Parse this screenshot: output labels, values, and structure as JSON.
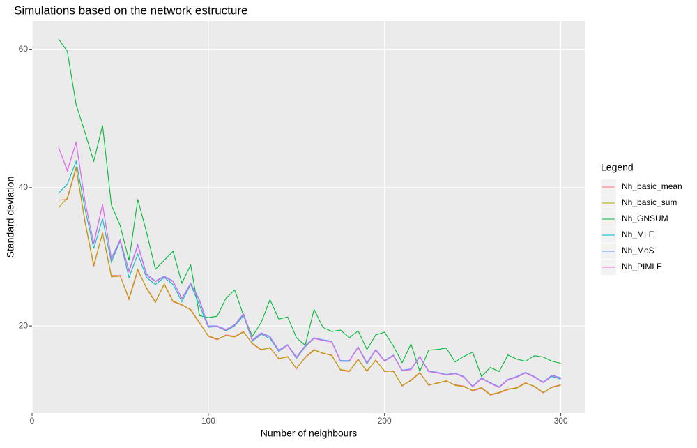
{
  "chart_data": {
    "type": "line",
    "title": "Simulations based on the network estructure",
    "x_label": "Number of neighbours",
    "y_label": "Standard deviation",
    "legend_title": "Legend",
    "legend_position": "right",
    "grid": true,
    "xlim": [
      0,
      314
    ],
    "ylim": [
      7.4,
      64.1
    ],
    "xticks": [
      0,
      100,
      200,
      300
    ],
    "yticks": [
      20,
      40,
      60
    ],
    "x": [
      15,
      20,
      25,
      30,
      35,
      40,
      45,
      50,
      55,
      60,
      65,
      70,
      75,
      80,
      85,
      90,
      95,
      100,
      105,
      110,
      115,
      120,
      125,
      130,
      135,
      140,
      145,
      150,
      155,
      160,
      165,
      170,
      175,
      180,
      185,
      190,
      195,
      200,
      205,
      210,
      215,
      220,
      225,
      230,
      235,
      240,
      245,
      250,
      255,
      260,
      265,
      270,
      275,
      280,
      285,
      290,
      295,
      300
    ],
    "series": [
      {
        "name": "Nh_basic_mean",
        "color": "#F8766D",
        "values": [
          38.2,
          38.3,
          42.8,
          35,
          28.6,
          33.5,
          27.3,
          27.3,
          23.8,
          28,
          25.5,
          23.5,
          26,
          23.5,
          23,
          22.4,
          20.5,
          18.5,
          18,
          18.7,
          18.5,
          19.2,
          17.4,
          16.5,
          16.9,
          15.2,
          15.6,
          13.8,
          15.5,
          16.6,
          16,
          15.8,
          13.6,
          13.4,
          15.2,
          13.4,
          15.1,
          13.4,
          13.5,
          11.3,
          12.2,
          13.3,
          11.4,
          11.8,
          12,
          11.5,
          11.3,
          10.6,
          11,
          10,
          10.3,
          10.8,
          11.1,
          11.8,
          11.2,
          10.3,
          11.2,
          11.5
        ]
      },
      {
        "name": "Nh_basic_sum",
        "color": "#B79F00",
        "values": [
          37.1,
          38.5,
          43,
          35.2,
          28.8,
          33.4,
          27.1,
          27.2,
          24,
          28.2,
          25.4,
          23.4,
          26.1,
          23.6,
          23.1,
          22.3,
          20.4,
          18.6,
          18.1,
          18.6,
          18.4,
          19.1,
          17.5,
          16.6,
          16.8,
          15.3,
          15.5,
          13.9,
          15.4,
          16.5,
          16.1,
          15.7,
          13.7,
          13.5,
          15.1,
          13.5,
          15,
          13.5,
          13.4,
          11.4,
          12.1,
          13.2,
          11.5,
          11.7,
          12.1,
          11.4,
          11.2,
          10.7,
          11.1,
          10.1,
          10.4,
          10.9,
          11,
          11.7,
          11.3,
          10.4,
          11.1,
          11.4
        ]
      },
      {
        "name": "Nh_GNSUM",
        "color": "#00BA38",
        "values": [
          61.5,
          59.7,
          52,
          48,
          43.8,
          49,
          37.5,
          34.5,
          29.5,
          38.3,
          33.5,
          28.2,
          29.5,
          30.8,
          26.2,
          28.8,
          21.5,
          21.2,
          21.4,
          24,
          25.2,
          21.5,
          18.5,
          20.5,
          23.8,
          21,
          21.3,
          18.3,
          17.2,
          22.4,
          19.8,
          19.2,
          19.4,
          18.3,
          19.3,
          16.6,
          18.7,
          19.1,
          17.1,
          14.7,
          17.4,
          13.4,
          16.5,
          16.6,
          16.8,
          14.8,
          15.6,
          16.2,
          12.7,
          14,
          13.4,
          15.8,
          15.2,
          14.9,
          15.7,
          15.5,
          14.9,
          14.6
        ]
      },
      {
        "name": "Nh_MLE",
        "color": "#00BFC4",
        "values": [
          39.2,
          40.5,
          43.8,
          37,
          31.2,
          35.5,
          29.2,
          32.3,
          27,
          30.4,
          27,
          26,
          27,
          26,
          23.5,
          26,
          23,
          19.8,
          19.9,
          19.3,
          20,
          21.5,
          17.8,
          18.8,
          18.2,
          16.3,
          17.2,
          15.3,
          17,
          18.2,
          17.9,
          17.7,
          14.9,
          14.9,
          16.9,
          14.5,
          16.5,
          14.9,
          15.7,
          13.5,
          13.7,
          15.5,
          13.4,
          13.2,
          12.9,
          13.1,
          12.6,
          11.2,
          12.4,
          11.7,
          11.1,
          12.2,
          12.6,
          13.2,
          12.6,
          11.8,
          12.7,
          12.3
        ]
      },
      {
        "name": "Nh_MoS",
        "color": "#619CFF",
        "values": [
          45.8,
          42.5,
          46.5,
          38,
          32,
          37.6,
          29.8,
          32.5,
          28,
          31.8,
          27.5,
          26.5,
          27.2,
          26.5,
          24,
          26.2,
          23.8,
          20,
          20,
          19.5,
          20.2,
          21.8,
          18,
          19,
          18.5,
          16.5,
          17.3,
          15.5,
          17.2,
          18.3,
          18,
          17.8,
          15,
          15,
          17,
          14.7,
          16.6,
          15,
          15.8,
          13.6,
          13.8,
          15.6,
          13.5,
          13.3,
          13,
          13.2,
          12.7,
          11.3,
          12.5,
          11.8,
          11.2,
          12.3,
          12.7,
          13.3,
          12.7,
          11.9,
          12.9,
          12.5
        ]
      },
      {
        "name": "Nh_PIMLE",
        "color": "#F564E3",
        "values": [
          45.9,
          42.4,
          46.6,
          38.1,
          31.8,
          37.5,
          29.6,
          32.4,
          27.8,
          31.6,
          27.3,
          26.4,
          27.1,
          26.4,
          23.9,
          26.1,
          23.6,
          19.9,
          19.9,
          19.4,
          20.1,
          21.7,
          17.9,
          18.9,
          18.4,
          16.4,
          17.2,
          15.4,
          17.1,
          18.2,
          17.9,
          17.7,
          14.9,
          14.9,
          16.9,
          14.6,
          16.5,
          14.9,
          15.7,
          13.5,
          13.7,
          15.5,
          13.4,
          13.2,
          12.9,
          13.1,
          12.6,
          11.2,
          12.4,
          11.7,
          11.1,
          12.2,
          12.6,
          13.2,
          12.6,
          11.8,
          12.8,
          12.4
        ]
      }
    ]
  }
}
